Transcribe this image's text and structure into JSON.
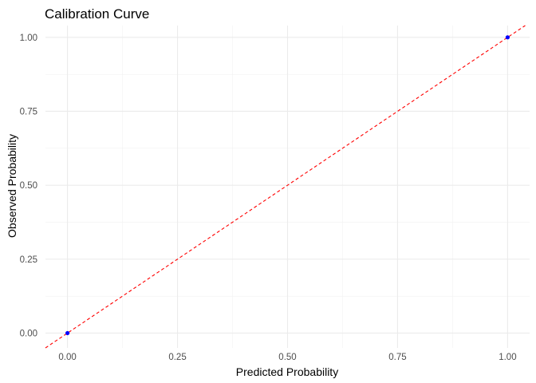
{
  "chart_data": {
    "type": "scatter",
    "title": "Calibration Curve",
    "xlabel": "Predicted Probability",
    "ylabel": "Observed Probability",
    "xlim": [
      -0.05,
      1.05
    ],
    "ylim": [
      -0.05,
      1.04
    ],
    "x_ticks": [
      0.0,
      0.25,
      0.5,
      0.75,
      1.0
    ],
    "x_tick_labels": [
      "0.00",
      "0.25",
      "0.50",
      "0.75",
      "1.00"
    ],
    "y_ticks": [
      0.0,
      0.25,
      0.5,
      0.75,
      1.0
    ],
    "y_tick_labels": [
      "0.00",
      "0.25",
      "0.50",
      "0.75",
      "1.00"
    ],
    "grid": true,
    "legend": "none",
    "series": [
      {
        "type": "scatter",
        "color": "#0000ff",
        "points": [
          {
            "x": 0.0,
            "y": 0.0
          },
          {
            "x": 1.0,
            "y": 1.0
          }
        ]
      }
    ],
    "reference_line": {
      "type": "line",
      "slope": 1,
      "intercept": 0,
      "style": "dashed",
      "color": "#ff0000"
    }
  }
}
